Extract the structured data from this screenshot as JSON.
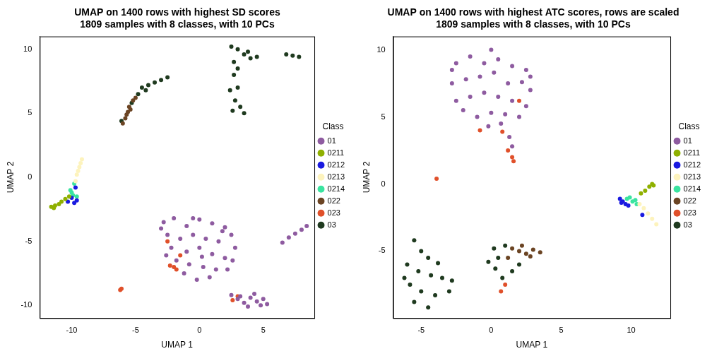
{
  "chart_data": [
    {
      "type": "scatter",
      "title": [
        "UMAP on 1400 rows with highest SD scores",
        "1809 samples with 8 classes, with 10 PCs"
      ],
      "x_label": "UMAP 1",
      "y_label": "UMAP 2",
      "legend": "right",
      "legend_title": "Class",
      "grid": false,
      "marker": "circle",
      "xlim": [
        -12.5,
        9
      ],
      "xticks": [
        -10,
        -5,
        0,
        5
      ],
      "ylim": [
        -11,
        11
      ],
      "yticks": [
        -10,
        -5,
        0,
        5,
        10
      ],
      "series": [
        {
          "name": "01",
          "color": "#8e5ba0",
          "values": [
            [
              -2.8,
              -3.5
            ],
            [
              -2,
              -3.2
            ],
            [
              -1,
              -3.8
            ],
            [
              0,
              -3.3
            ],
            [
              1,
              -3.6
            ],
            [
              2,
              -3.9
            ],
            [
              2.5,
              -4.5
            ],
            [
              -2.5,
              -4.5
            ],
            [
              -1.5,
              -4.8
            ],
            [
              -0.5,
              -4.5
            ],
            [
              0.5,
              -4.8
            ],
            [
              1.5,
              -5
            ],
            [
              2.8,
              -5.5
            ],
            [
              -2.2,
              -5.5
            ],
            [
              -1,
              -5.8
            ],
            [
              0,
              -5.5
            ],
            [
              1,
              -6
            ],
            [
              2,
              -6.3
            ],
            [
              2.6,
              -6.5
            ],
            [
              -1.8,
              -6.5
            ],
            [
              -0.8,
              -6.8
            ],
            [
              0.3,
              -7
            ],
            [
              1.3,
              -7.2
            ],
            [
              2.2,
              -7.2
            ],
            [
              -0.2,
              -8
            ],
            [
              0.8,
              -7.8
            ],
            [
              -1.2,
              -7.5
            ],
            [
              -2.6,
              -6.1
            ],
            [
              -3,
              -4
            ],
            [
              1.8,
              -4.2
            ],
            [
              0.2,
              -6.2
            ],
            [
              -0.5,
              -3.2
            ],
            [
              2.5,
              -9.2
            ],
            [
              3,
              -9.5
            ],
            [
              3.5,
              -9.8
            ],
            [
              4,
              -9.4
            ],
            [
              4.5,
              -9.7
            ],
            [
              5,
              -9.5
            ],
            [
              5.3,
              -9.9
            ],
            [
              3.8,
              -10.1
            ],
            [
              4.3,
              -9.1
            ],
            [
              3.2,
              -9.3
            ],
            [
              4.8,
              -10
            ],
            [
              6.5,
              -5.1
            ],
            [
              7,
              -4.7
            ],
            [
              7.5,
              -4.4
            ],
            [
              8,
              -4.1
            ],
            [
              8.4,
              -3.8
            ]
          ]
        },
        {
          "name": "0211",
          "color": "#8fb000",
          "values": [
            [
              -11.6,
              -2.3
            ],
            [
              -11.3,
              -2.2
            ],
            [
              -11,
              -2.1
            ],
            [
              -10.8,
              -1.9
            ],
            [
              -10.5,
              -1.7
            ],
            [
              -10.2,
              -1.5
            ],
            [
              -11.4,
              -2.4
            ]
          ]
        },
        {
          "name": "0212",
          "color": "#1a1ae0",
          "values": [
            [
              -10,
              -1.6
            ],
            [
              -9.8,
              -2
            ],
            [
              -9.6,
              -1.8
            ],
            [
              -10.3,
              -1.9
            ],
            [
              -9.7,
              -0.8
            ]
          ]
        },
        {
          "name": "0213",
          "color": "#fdf3bd",
          "values": [
            [
              -9.6,
              0.2
            ],
            [
              -9.5,
              0.5
            ],
            [
              -9.4,
              0.8
            ],
            [
              -9.3,
              1.1
            ],
            [
              -9.2,
              1.4
            ],
            [
              -9.7,
              -0.3
            ]
          ]
        },
        {
          "name": "0214",
          "color": "#3ae4a0",
          "values": [
            [
              -10,
              -1.2
            ],
            [
              -9.9,
              -1.4
            ],
            [
              -10.1,
              -1
            ],
            [
              -9.8,
              -0.5
            ],
            [
              -9.6,
              -1.5
            ]
          ]
        },
        {
          "name": "022",
          "color": "#6b4423",
          "values": [
            [
              -6,
              4.2
            ],
            [
              -5.8,
              4.6
            ],
            [
              -5.6,
              5.1
            ],
            [
              -5.5,
              5.5
            ],
            [
              -5.2,
              6
            ],
            [
              -5,
              6.2
            ],
            [
              -5.7,
              4.9
            ],
            [
              -5.4,
              5.3
            ]
          ]
        },
        {
          "name": "023",
          "color": "#e0502a",
          "values": [
            [
              -2,
              -7
            ],
            [
              -2.3,
              -6.9
            ],
            [
              -1.8,
              -7.2
            ],
            [
              -6.2,
              -8.8
            ],
            [
              -1.5,
              -6.1
            ],
            [
              -2.5,
              -5
            ],
            [
              3,
              -9.3
            ],
            [
              2.6,
              -9.6
            ],
            [
              -6.1,
              -8.7
            ]
          ]
        },
        {
          "name": "03",
          "color": "#1f3a1f",
          "values": [
            [
              -6.1,
              4.4
            ],
            [
              -5.3,
              5.8
            ],
            [
              -4.8,
              6.5
            ],
            [
              -4.5,
              7
            ],
            [
              -4,
              7.2
            ],
            [
              -3.5,
              7.4
            ],
            [
              -3,
              7.6
            ],
            [
              -2.5,
              7.8
            ],
            [
              -4.2,
              6.8
            ],
            [
              2.5,
              10.2
            ],
            [
              3,
              10
            ],
            [
              3.5,
              9.6
            ],
            [
              4,
              9.3
            ],
            [
              4.5,
              9.4
            ],
            [
              3.8,
              9.8
            ],
            [
              2.7,
              8
            ],
            [
              3,
              7
            ],
            [
              2.8,
              6
            ],
            [
              2.6,
              5.2
            ],
            [
              3.2,
              5.5
            ],
            [
              3.5,
              5
            ],
            [
              3,
              8.5
            ],
            [
              2.4,
              6.8
            ],
            [
              6.8,
              9.6
            ],
            [
              7.3,
              9.5
            ],
            [
              7.8,
              9.4
            ],
            [
              2.7,
              9
            ]
          ]
        }
      ]
    },
    {
      "type": "scatter",
      "title": [
        "UMAP on 1400 rows with highest ATC scores, rows are scaled",
        "1809 samples with 8 classes, with 10 PCs"
      ],
      "x_label": "UMAP 1",
      "y_label": "UMAP 2",
      "legend": "right",
      "legend_title": "Class",
      "grid": false,
      "marker": "circle",
      "xlim": [
        -7,
        12.8
      ],
      "xticks": [
        -5,
        0,
        5,
        10
      ],
      "ylim": [
        -10,
        11
      ],
      "yticks": [
        -5,
        0,
        5,
        10
      ],
      "series": [
        {
          "name": "01",
          "color": "#8e5ba0",
          "values": [
            [
              -2.5,
              9
            ],
            [
              -1.5,
              9.5
            ],
            [
              -0.5,
              9
            ],
            [
              0,
              10
            ],
            [
              0.5,
              9.3
            ],
            [
              1.5,
              8.8
            ],
            [
              2.5,
              8.5
            ],
            [
              -2.8,
              7.5
            ],
            [
              -1.8,
              7.8
            ],
            [
              -0.8,
              8
            ],
            [
              0.2,
              8.3
            ],
            [
              1.2,
              7.5
            ],
            [
              2.2,
              7.6
            ],
            [
              2.8,
              7
            ],
            [
              -2.5,
              6.2
            ],
            [
              -1.5,
              6.5
            ],
            [
              -0.5,
              6.8
            ],
            [
              0.5,
              6.5
            ],
            [
              1.5,
              6.2
            ],
            [
              2.5,
              5.8
            ],
            [
              -2,
              5.5
            ],
            [
              -1,
              5
            ],
            [
              0,
              5.3
            ],
            [
              1,
              5.2
            ],
            [
              2,
              5
            ],
            [
              -0.2,
              4.3
            ],
            [
              0.7,
              4.5
            ],
            [
              1.3,
              3.5
            ],
            [
              1.5,
              2.8
            ],
            [
              -2.8,
              8.5
            ],
            [
              2.8,
              8
            ]
          ]
        },
        {
          "name": "0211",
          "color": "#8fb000",
          "values": [
            [
              11.5,
              0
            ],
            [
              11.3,
              -0.2
            ],
            [
              11,
              -0.5
            ],
            [
              10.7,
              -0.7
            ],
            [
              11.6,
              -0.1
            ]
          ]
        },
        {
          "name": "0212",
          "color": "#1a1ae0",
          "values": [
            [
              9.2,
              -1.1
            ],
            [
              9.4,
              -1.3
            ],
            [
              9.6,
              -1.5
            ],
            [
              9.3,
              -1.4
            ],
            [
              9.8,
              -1.6
            ],
            [
              10.8,
              -2.3
            ]
          ]
        },
        {
          "name": "0213",
          "color": "#fdf3bd",
          "values": [
            [
              10.6,
              -1.5
            ],
            [
              10.9,
              -1.8
            ],
            [
              11.2,
              -2.2
            ],
            [
              11.5,
              -2.6
            ],
            [
              11.8,
              -3
            ]
          ]
        },
        {
          "name": "0214",
          "color": "#3ae4a0",
          "values": [
            [
              9.9,
              -1
            ],
            [
              10.1,
              -1.3
            ],
            [
              10.3,
              -1.2
            ],
            [
              9.7,
              -1.1
            ],
            [
              10.4,
              -1.5
            ]
          ]
        },
        {
          "name": "022",
          "color": "#6b4423",
          "values": [
            [
              1.5,
              -4.8
            ],
            [
              2,
              -5
            ],
            [
              2.5,
              -5.2
            ],
            [
              3,
              -4.9
            ],
            [
              3.5,
              -5.1
            ],
            [
              2.8,
              -5.4
            ],
            [
              2.2,
              -4.6
            ],
            [
              1.2,
              -5.5
            ]
          ]
        },
        {
          "name": "023",
          "color": "#e0502a",
          "values": [
            [
              1.5,
              2
            ],
            [
              1.2,
              2.5
            ],
            [
              1.6,
              1.7
            ],
            [
              0.8,
              3.9
            ],
            [
              2,
              6.2
            ],
            [
              -3.9,
              0.4
            ],
            [
              1,
              -7.5
            ],
            [
              0.7,
              -8
            ],
            [
              -0.8,
              4
            ]
          ]
        },
        {
          "name": "03",
          "color": "#1f3a1f",
          "values": [
            [
              -5.5,
              -4.2
            ],
            [
              -5,
              -5
            ],
            [
              -4.5,
              -5.5
            ],
            [
              -6,
              -6
            ],
            [
              -5.2,
              -6.5
            ],
            [
              -4.3,
              -6.8
            ],
            [
              -3.5,
              -7
            ],
            [
              -5.8,
              -7.5
            ],
            [
              -5,
              -8
            ],
            [
              -4,
              -8.3
            ],
            [
              -3,
              -8
            ],
            [
              -2.8,
              -7.2
            ],
            [
              -5.5,
              -8.8
            ],
            [
              -4.5,
              -9.2
            ],
            [
              -6.2,
              -7
            ],
            [
              -3.8,
              -5.9
            ],
            [
              0.2,
              -4.8
            ],
            [
              0.5,
              -5.5
            ],
            [
              1,
              -4.6
            ],
            [
              0.3,
              -6.3
            ],
            [
              1.5,
              -6.5
            ],
            [
              0.8,
              -7
            ],
            [
              2,
              -6
            ],
            [
              -0.2,
              -5.8
            ]
          ]
        }
      ]
    }
  ]
}
